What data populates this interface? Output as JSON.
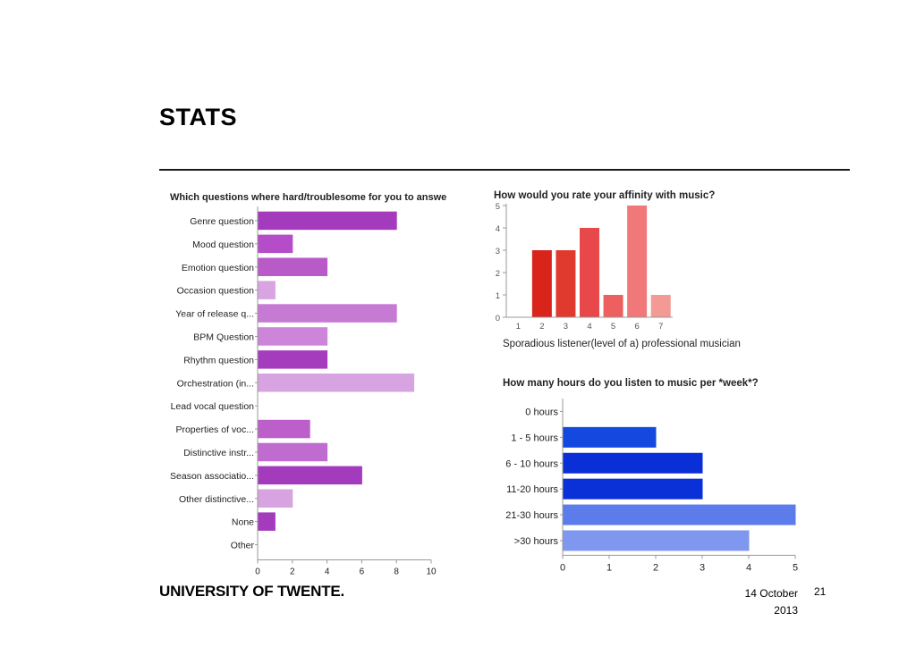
{
  "slide": {
    "title": "STATS",
    "footer": {
      "logo_text": "UNIVERSITY OF TWENTE.",
      "date_line1": "14 October",
      "date_line2": "2013",
      "page_number": "21"
    }
  },
  "chart_data": [
    {
      "type": "bar",
      "orientation": "horizontal",
      "title": "Which questions where hard/troublesome for you to answer?",
      "categories": [
        "Genre question",
        "Mood question",
        "Emotion question",
        "Occasion question",
        "Year of release q...",
        "BPM Question",
        "Rhythm question",
        "Orchestration (in...",
        "Lead vocal question",
        "Properties of voc...",
        "Distinctive instr...",
        "Season associatio...",
        "Other distinctive...",
        "None",
        "Other"
      ],
      "values": [
        8,
        2,
        4,
        1,
        8,
        4,
        4,
        9,
        0,
        3,
        4,
        6,
        2,
        1,
        0
      ],
      "colors": [
        "#a43bbd",
        "#b54dc8",
        "#b95ac9",
        "#d9a4e2",
        "#c77ad3",
        "#cc85d8",
        "#a53cbe",
        "#d8a3e1",
        "#cc85d8",
        "#bc5fcb",
        "#c06bcf",
        "#a43bbd",
        "#d8a3e1",
        "#a43bbd",
        "#cc85d8"
      ],
      "xlim": [
        0,
        10
      ],
      "xticks": [
        0,
        2,
        4,
        6,
        8,
        10
      ],
      "grid": false
    },
    {
      "type": "bar",
      "title": "How would you rate your affinity with music?",
      "xlabel": "Sporadious listener(level of a) professional musician",
      "categories": [
        "1",
        "2",
        "3",
        "4",
        "5",
        "6",
        "7"
      ],
      "values": [
        0,
        3,
        3,
        4,
        1,
        5,
        1
      ],
      "colors": [
        "#d9241a",
        "#d9241a",
        "#e03a2f",
        "#e8484a",
        "#ee6060",
        "#f07878",
        "#f39a94"
      ],
      "ylim": [
        0,
        5
      ],
      "yticks": [
        0,
        1,
        2,
        3,
        4,
        5
      ],
      "grid": false
    },
    {
      "type": "bar",
      "orientation": "horizontal",
      "title": "How many hours do you listen to music per *week*?",
      "categories": [
        "0 hours",
        "1 - 5 hours",
        "6 - 10 hours",
        "11-20 hours",
        "21-30 hours",
        ">30 hours"
      ],
      "values": [
        0,
        2,
        3,
        3,
        5,
        4
      ],
      "colors": [
        "#1449e0",
        "#1449e0",
        "#0a2fd6",
        "#0a30d8",
        "#5c7cec",
        "#7f97ef"
      ],
      "xlim": [
        0,
        5
      ],
      "xticks": [
        0,
        1,
        2,
        3,
        4,
        5
      ],
      "grid": false
    }
  ]
}
